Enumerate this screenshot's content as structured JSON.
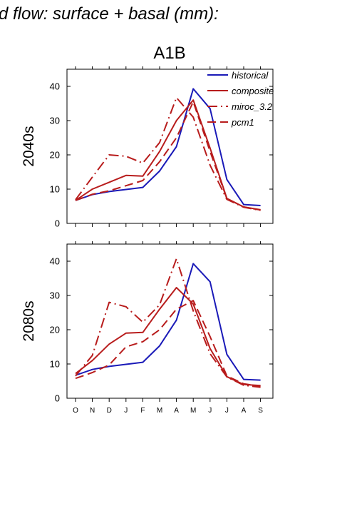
{
  "header": {
    "title": "d flow: surface + basal (mm):",
    "scenario": "A1B"
  },
  "colors": {
    "historical": "#1a1ab8",
    "projection": "#b81c1c",
    "axis": "#000000"
  },
  "chart_data": [
    {
      "type": "line",
      "title": "A1B",
      "ylabel": "2040s",
      "categories": [
        "O",
        "N",
        "D",
        "J",
        "F",
        "M",
        "A",
        "M",
        "J",
        "J",
        "A",
        "S"
      ],
      "ylim": [
        0,
        45
      ],
      "yticks": [
        0,
        10,
        20,
        30,
        40
      ],
      "grid": false,
      "legend_position": "top-right",
      "series": [
        {
          "name": "historical",
          "style": "solid",
          "color": "#1a1ab8",
          "values": [
            6.7,
            8.4,
            9.3,
            9.9,
            10.5,
            15.3,
            22.4,
            39.3,
            33.5,
            12.8,
            5.5,
            5.2
          ]
        },
        {
          "name": "composite",
          "style": "solid",
          "color": "#b81c1c",
          "values": [
            6.7,
            10.0,
            12.0,
            14.0,
            13.8,
            21.0,
            30.0,
            36.0,
            22.0,
            7.3,
            4.8,
            4.0
          ]
        },
        {
          "name": "miroc_3.2",
          "style": "dashdot",
          "color": "#b81c1c",
          "values": [
            6.9,
            13.5,
            20.0,
            19.6,
            17.6,
            23.6,
            36.7,
            31.0,
            17.0,
            7.0,
            4.7,
            3.8
          ]
        },
        {
          "name": "pcm1",
          "style": "dashed",
          "color": "#b81c1c",
          "values": [
            6.7,
            8.5,
            9.5,
            11.0,
            12.5,
            18.0,
            25.0,
            35.5,
            21.0,
            7.2,
            4.8,
            3.9
          ]
        }
      ]
    },
    {
      "type": "line",
      "title": "",
      "ylabel": "2080s",
      "categories": [
        "O",
        "N",
        "D",
        "J",
        "F",
        "M",
        "A",
        "M",
        "J",
        "J",
        "A",
        "S"
      ],
      "ylim": [
        0,
        45
      ],
      "yticks": [
        0,
        10,
        20,
        30,
        40
      ],
      "grid": false,
      "series": [
        {
          "name": "historical",
          "style": "solid",
          "color": "#1a1ab8",
          "values": [
            6.7,
            8.4,
            9.3,
            9.9,
            10.5,
            15.3,
            22.8,
            39.3,
            34.0,
            12.8,
            5.5,
            5.3
          ]
        },
        {
          "name": "composite",
          "style": "solid",
          "color": "#b81c1c",
          "values": [
            7.2,
            11.0,
            15.8,
            19.0,
            19.2,
            26.0,
            32.3,
            27.5,
            14.5,
            6.3,
            4.0,
            3.7
          ]
        },
        {
          "name": "miroc_3.2",
          "style": "dashdot",
          "color": "#b81c1c",
          "values": [
            6.5,
            12.5,
            28.0,
            26.7,
            22.2,
            27.3,
            40.7,
            25.5,
            13.0,
            6.2,
            3.8,
            3.2
          ]
        },
        {
          "name": "pcm1",
          "style": "dashed",
          "color": "#b81c1c",
          "values": [
            5.8,
            7.5,
            9.7,
            15.0,
            16.5,
            20.0,
            26.0,
            28.5,
            18.0,
            6.5,
            4.2,
            3.5
          ]
        }
      ]
    }
  ]
}
